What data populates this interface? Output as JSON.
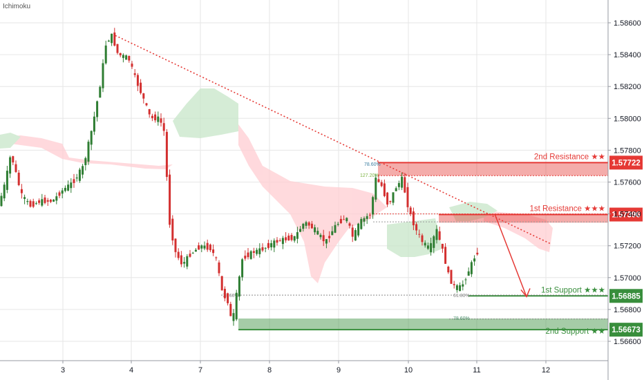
{
  "indicator": "Ichimoku",
  "colors": {
    "bull": "#2e7d32",
    "bear": "#d32f2f",
    "resistance": "#e53935",
    "support": "#388e3c",
    "cloud_bull": "#c8e6c9",
    "cloud_bear": "#ffcdd2",
    "grid": "#e6e6e6"
  },
  "chart_data": {
    "type": "candlestick",
    "title": "",
    "xlabel": "",
    "ylabel": "",
    "ylim": [
      1.565,
      1.5873
    ],
    "y_ticks": [
      "1.58600",
      "1.58400",
      "1.58200",
      "1.58000",
      "1.57800",
      "1.57600",
      "1.57400",
      "1.57200",
      "1.57000",
      "1.56800",
      "1.56600"
    ],
    "x_ticks": [
      "3",
      "4",
      "7",
      "8",
      "9",
      "10",
      "11",
      "12"
    ],
    "levels": [
      {
        "name": "2nd Resistance",
        "stars": "★★",
        "price": "1.57722",
        "kind": "resistance",
        "zone": [
          1.5764,
          1.57722
        ]
      },
      {
        "name": "1st Resistance",
        "stars": "★★★",
        "price": "1.57396",
        "kind": "resistance",
        "zone": [
          1.57345,
          1.57396
        ]
      },
      {
        "name": "1st Support",
        "stars": "★★★",
        "price": "1.56885",
        "kind": "support",
        "zone": [
          1.56885,
          1.56885
        ]
      },
      {
        "name": "2nd Support",
        "stars": "★★",
        "price": "1.56673",
        "kind": "support",
        "zone": [
          1.56673,
          1.56743
        ]
      }
    ],
    "fib_labels": [
      "78.60%",
      "127.20%",
      "78.60%",
      "61.80%",
      "78.60%"
    ],
    "trendline": {
      "from": [
        "4",
        1.5852
      ],
      "to": [
        "12",
        1.5721
      ]
    },
    "projection": {
      "from": 1.574,
      "to": 1.5688
    }
  }
}
